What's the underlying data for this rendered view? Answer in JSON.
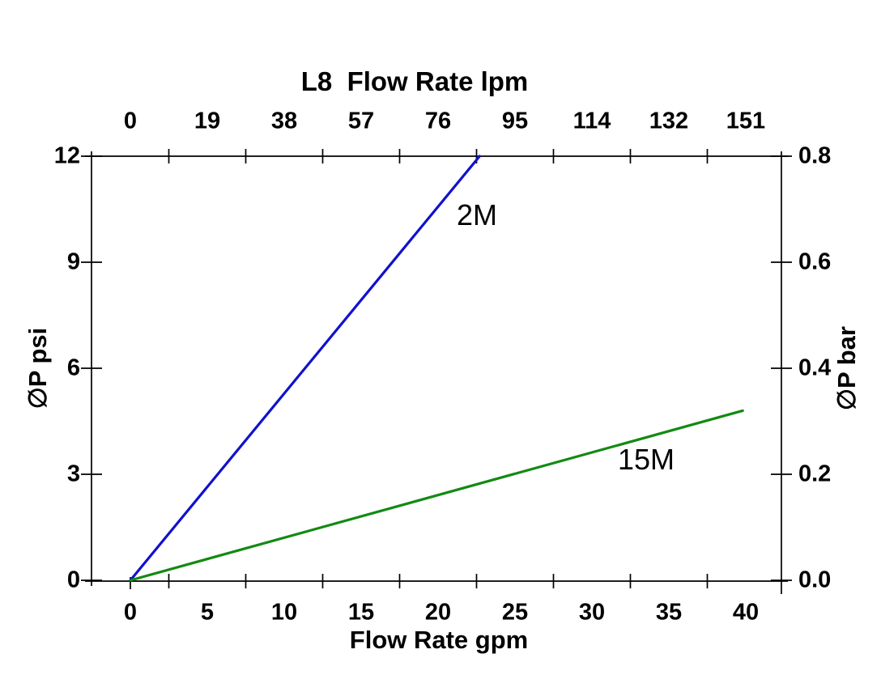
{
  "chart_data": {
    "type": "line",
    "title": "L8  Flow Rate lpm",
    "top_axis": {
      "label": "L8  Flow Rate lpm",
      "unit": "lpm",
      "tick_labels": [
        "0",
        "19",
        "38",
        "57",
        "76",
        "95",
        "114",
        "132",
        "151"
      ]
    },
    "bottom_axis": {
      "label": "Flow Rate gpm",
      "unit": "gpm",
      "tick_labels": [
        "0",
        "5",
        "10",
        "15",
        "20",
        "25",
        "30",
        "35",
        "40"
      ],
      "range_gpm": [
        0,
        40
      ]
    },
    "left_axis": {
      "label": "∅P psi",
      "unit": "psi",
      "tick_labels": [
        "0",
        "3",
        "6",
        "9",
        "12"
      ],
      "tick_values_psi": [
        0,
        3,
        6,
        9,
        12
      ],
      "range_psi": [
        0,
        12
      ]
    },
    "right_axis": {
      "label": "∅P bar",
      "unit": "bar",
      "tick_labels": [
        "0.0",
        "0.2",
        "0.4",
        "0.6",
        "0.8"
      ],
      "range_bar": [
        0,
        0.8
      ]
    },
    "series": [
      {
        "name": "2M",
        "color": "#1111cd",
        "points_gpm_psi": [
          [
            0,
            0
          ],
          [
            22.7,
            12
          ]
        ]
      },
      {
        "name": "15M",
        "color": "#128a12",
        "points_gpm_psi": [
          [
            0,
            0
          ],
          [
            39.8,
            4.8
          ]
        ]
      }
    ],
    "grid": false,
    "legend_position": "inline-line-labels",
    "background": "#ffffff",
    "axis_color": "#000000",
    "text_color": "#000000"
  }
}
